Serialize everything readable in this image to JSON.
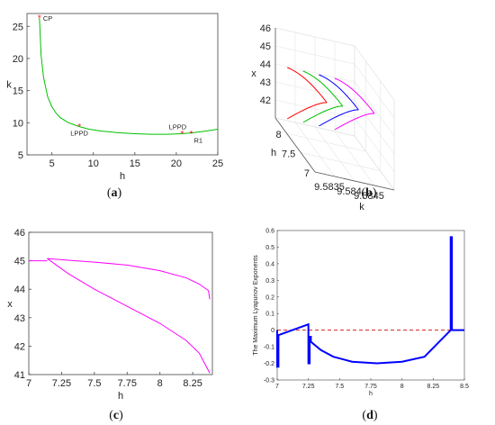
{
  "figure": {
    "captions": [
      {
        "open": "(",
        "letter": "a",
        "close": ")"
      },
      {
        "open": "(",
        "letter": "b",
        "close": ")"
      },
      {
        "open": "(",
        "letter": "c",
        "close": ")"
      },
      {
        "open": "(",
        "letter": "d",
        "close": ")"
      }
    ]
  },
  "chart_data": [
    {
      "id": "a",
      "type": "line",
      "xlabel": "h",
      "ylabel": "k",
      "xlim": [
        2,
        25
      ],
      "ylim": [
        5,
        27
      ],
      "xticks": [
        5,
        10,
        15,
        20,
        25
      ],
      "yticks": [
        5,
        10,
        15,
        20,
        25
      ],
      "curve_color": "#00c000",
      "point_color": "#ff0000",
      "series": [
        {
          "x": [
            3.5,
            3.7,
            4.0,
            4.5,
            5.0,
            5.5,
            6.0,
            7.0,
            8.3,
            9.5,
            11,
            13,
            15,
            17,
            19,
            20.7,
            22,
            23.5,
            25
          ],
          "y": [
            26.3,
            20.5,
            17.0,
            14.0,
            12.5,
            11.5,
            10.8,
            10.0,
            9.4,
            9.0,
            8.7,
            8.45,
            8.3,
            8.2,
            8.2,
            8.3,
            8.45,
            8.7,
            9.0
          ]
        }
      ],
      "points": [
        {
          "label": "CP",
          "x": 3.5,
          "y": 26.3,
          "pos": "right"
        },
        {
          "label": "LPPD",
          "x": 8.3,
          "y": 9.4,
          "pos": "below"
        },
        {
          "label": "LPPD",
          "x": 20.7,
          "y": 8.3,
          "pos": "above"
        },
        {
          "label": "R1",
          "x": 21.8,
          "y": 8.3,
          "pos": "below-right"
        }
      ]
    },
    {
      "id": "b",
      "type": "line",
      "projection": "3d",
      "xlabel": "k",
      "ylabel": "h",
      "zlabel": "x",
      "xlim": [
        9.583,
        9.585
      ],
      "ylim": [
        7,
        8.4
      ],
      "zlim": [
        41,
        46
      ],
      "xticks": [
        9.5835,
        9.584,
        9.5845
      ],
      "yticks": [
        7,
        7.5,
        8
      ],
      "zticks": [
        42,
        43,
        44,
        45,
        46
      ],
      "tick_labels_x": [
        "9.5835",
        "9.584",
        "9.5845"
      ],
      "series": [
        {
          "color": "#ff0000",
          "k": 9.5833,
          "h": [
            7.0,
            8.4
          ],
          "x_upper": 45.0,
          "x_lower": 41.1
        },
        {
          "color": "#00c000",
          "k": 9.5837,
          "h": [
            7.0,
            8.4
          ],
          "x_upper": 45.0,
          "x_lower": 41.1
        },
        {
          "color": "#0000ff",
          "k": 9.5841,
          "h": [
            7.0,
            8.4
          ],
          "x_upper": 45.0,
          "x_lower": 41.1
        },
        {
          "color": "#ff00ff",
          "k": 9.5845,
          "h": [
            7.0,
            8.4
          ],
          "x_upper": 45.0,
          "x_lower": 41.1
        }
      ]
    },
    {
      "id": "c",
      "type": "line",
      "xlabel": "h",
      "ylabel": "x",
      "xlim": [
        7,
        8.4
      ],
      "ylim": [
        41,
        46
      ],
      "xticks": [
        7,
        7.25,
        7.5,
        7.75,
        8,
        8.25
      ],
      "yticks": [
        41,
        42,
        43,
        44,
        45,
        46
      ],
      "tick_labels_x": [
        "7",
        "7.25",
        "7.5",
        "7.75",
        "8",
        "8.25"
      ],
      "tick_labels_y": [
        "41",
        "42",
        "43",
        "44",
        "45",
        "46"
      ],
      "curve_color": "#ff00ff",
      "series": [
        {
          "name": "",
          "x": [
            7.0,
            7.08,
            7.14
          ],
          "y": [
            45.0,
            45.0,
            45.0
          ]
        },
        {
          "name": "",
          "x": [
            7.14,
            7.3,
            7.5,
            7.75,
            8.0,
            8.2,
            8.3,
            8.37,
            8.38
          ],
          "y": [
            45.08,
            45.02,
            44.95,
            44.85,
            44.65,
            44.4,
            44.18,
            43.95,
            43.65
          ]
        },
        {
          "name": "",
          "x": [
            7.14,
            7.3,
            7.5,
            7.75,
            8.0,
            8.2,
            8.3,
            8.38
          ],
          "y": [
            45.08,
            44.55,
            44.0,
            43.4,
            42.8,
            42.2,
            41.75,
            41.05
          ]
        }
      ]
    },
    {
      "id": "d",
      "type": "line",
      "xlabel": "h",
      "ylabel": "The Maximum Lyapunov Exponents",
      "xlim": [
        7,
        8.5
      ],
      "ylim": [
        -0.3,
        0.6
      ],
      "xticks": [
        7,
        7.25,
        7.5,
        7.75,
        8,
        8.25,
        8.5
      ],
      "yticks": [
        -0.3,
        -0.2,
        -0.1,
        0,
        0.1,
        0.2,
        0.3,
        0.4,
        0.5,
        0.6
      ],
      "tick_labels_x": [
        "7",
        "7.25",
        "7.5",
        "7.75",
        "8",
        "8.25",
        "8.5"
      ],
      "tick_labels_y": [
        "-0.3",
        "-0.2",
        "-0.1",
        "0",
        "0.1",
        "0.2",
        "0.3",
        "0.4",
        "0.5",
        "0.6"
      ],
      "curve_color": "#0000ff",
      "zero_line_color": "#cc0000",
      "series": [
        {
          "x": [
            7.0,
            7.0,
            7.01,
            7.01,
            7.25,
            7.25,
            7.26,
            7.26,
            7.27,
            7.27,
            7.35,
            7.45,
            7.6,
            7.8,
            8.0,
            8.18,
            8.39,
            8.39,
            8.4,
            8.4,
            8.5
          ],
          "y": [
            0.0,
            -0.22,
            -0.22,
            -0.03,
            0.035,
            -0.2,
            -0.2,
            -0.04,
            -0.04,
            -0.07,
            -0.12,
            -0.16,
            -0.19,
            -0.2,
            -0.19,
            -0.16,
            0.0,
            0.56,
            0.56,
            0.0,
            0.0
          ]
        }
      ]
    }
  ]
}
